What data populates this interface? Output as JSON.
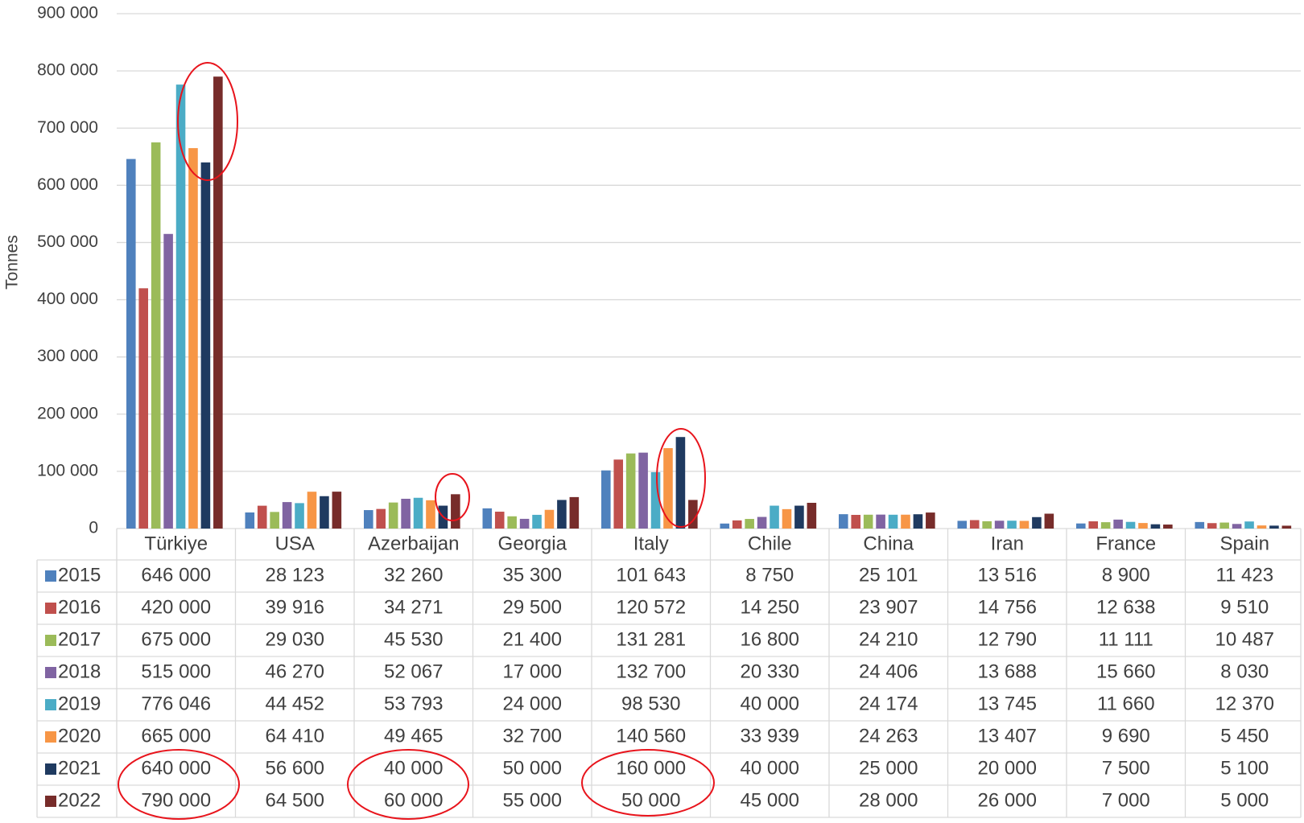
{
  "chart_data": {
    "type": "bar",
    "ylabel": "Tonnes",
    "categories": [
      "Türkiye",
      "USA",
      "Azerbaijan",
      "Georgia",
      "Italy",
      "Chile",
      "China",
      "Iran",
      "France",
      "Spain"
    ],
    "series": [
      {
        "name": "2015",
        "color": "#4f81bd",
        "values": [
          646000,
          28123,
          32260,
          35300,
          101643,
          8750,
          25101,
          13516,
          8900,
          11423
        ],
        "value_labels": [
          "646 000",
          "28 123",
          "32 260",
          "35 300",
          "101 643",
          "8 750",
          "25 101",
          "13 516",
          "8 900",
          "11 423"
        ]
      },
      {
        "name": "2016",
        "color": "#c0504d",
        "values": [
          420000,
          39916,
          34271,
          29500,
          120572,
          14250,
          23907,
          14756,
          12638,
          9510
        ],
        "value_labels": [
          "420 000",
          "39 916",
          "34 271",
          "29 500",
          "120 572",
          "14 250",
          "23 907",
          "14 756",
          "12 638",
          "9 510"
        ]
      },
      {
        "name": "2017",
        "color": "#9bbb59",
        "values": [
          675000,
          29030,
          45530,
          21400,
          131281,
          16800,
          24210,
          12790,
          11111,
          10487
        ],
        "value_labels": [
          "675 000",
          "29 030",
          "45 530",
          "21 400",
          "131 281",
          "16 800",
          "24 210",
          "12 790",
          "11 111",
          "10 487"
        ]
      },
      {
        "name": "2018",
        "color": "#8064a2",
        "values": [
          515000,
          46270,
          52067,
          17000,
          132700,
          20330,
          24406,
          13688,
          15660,
          8030
        ],
        "value_labels": [
          "515 000",
          "46 270",
          "52 067",
          "17 000",
          "132 700",
          "20 330",
          "24 406",
          "13 688",
          "15 660",
          "8 030"
        ]
      },
      {
        "name": "2019",
        "color": "#4bacc6",
        "values": [
          776046,
          44452,
          53793,
          24000,
          98530,
          40000,
          24174,
          13745,
          11660,
          12370
        ],
        "value_labels": [
          "776 046",
          "44 452",
          "53 793",
          "24 000",
          "98 530",
          "40 000",
          "24 174",
          "13 745",
          "11 660",
          "12 370"
        ]
      },
      {
        "name": "2020",
        "color": "#f79646",
        "values": [
          665000,
          64410,
          49465,
          32700,
          140560,
          33939,
          24263,
          13407,
          9690,
          5450
        ],
        "value_labels": [
          "665 000",
          "64 410",
          "49 465",
          "32 700",
          "140 560",
          "33 939",
          "24 263",
          "13 407",
          "9 690",
          "5 450"
        ]
      },
      {
        "name": "2021",
        "color": "#1f3a60",
        "values": [
          640000,
          56600,
          40000,
          50000,
          160000,
          40000,
          25000,
          20000,
          7500,
          5100
        ],
        "value_labels": [
          "640 000",
          "56 600",
          "40 000",
          "50 000",
          "160 000",
          "40 000",
          "25 000",
          "20 000",
          "7 500",
          "5 100"
        ]
      },
      {
        "name": "2022",
        "color": "#772c2a",
        "values": [
          790000,
          64500,
          60000,
          55000,
          50000,
          45000,
          28000,
          26000,
          7000,
          5000
        ],
        "value_labels": [
          "790 000",
          "64 500",
          "60 000",
          "55 000",
          "50 000",
          "45 000",
          "28 000",
          "26 000",
          "7 000",
          "5 000"
        ]
      }
    ],
    "ylim": [
      0,
      900000
    ],
    "yticks": [
      0,
      {
        "value": 100000,
        "label": "100 000"
      },
      {
        "value": 200000,
        "label": "200 000"
      },
      {
        "value": 300000,
        "label": "300 000"
      },
      {
        "value": 400000,
        "label": "400 000"
      },
      {
        "value": 500000,
        "label": "500 000"
      },
      {
        "value": 600000,
        "label": "600 000"
      },
      {
        "value": 700000,
        "label": "700 000"
      },
      {
        "value": 800000,
        "label": "800 000"
      },
      {
        "value": 900000,
        "label": "900 000"
      }
    ],
    "grid": true
  }
}
